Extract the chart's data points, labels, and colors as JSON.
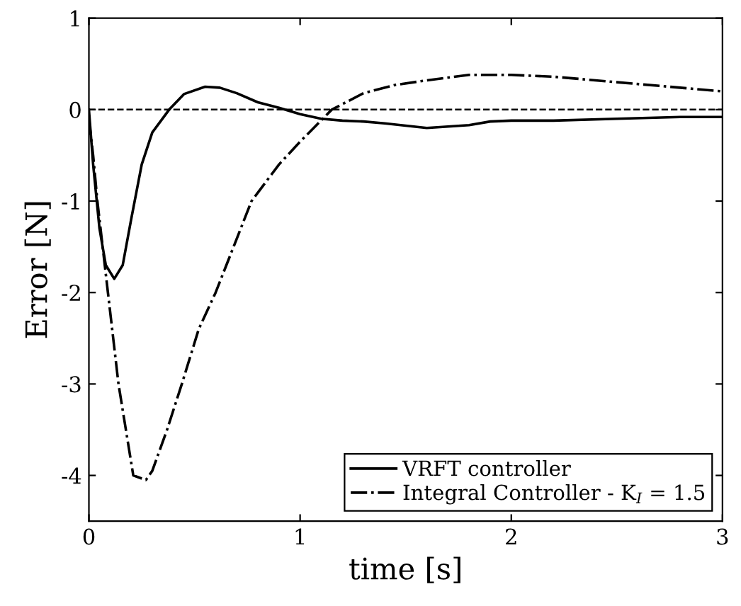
{
  "chart_data": {
    "type": "line",
    "xlabel": "time [s]",
    "ylabel": "Error [N]",
    "xlim": [
      0,
      3
    ],
    "ylim": [
      -4.5,
      1
    ],
    "xticks": [
      0,
      1,
      2,
      3
    ],
    "yticks": [
      -4,
      -3,
      -2,
      -1,
      0,
      1
    ],
    "grid": false,
    "legend": "bottom right",
    "series": [
      {
        "name": "VRFT controller",
        "color": "#000000",
        "line_style": "solid",
        "x": [
          0,
          0.02,
          0.05,
          0.08,
          0.12,
          0.16,
          0.2,
          0.25,
          0.3,
          0.38,
          0.45,
          0.55,
          0.62,
          0.7,
          0.8,
          0.9,
          1.0,
          1.1,
          1.2,
          1.3,
          1.4,
          1.6,
          1.8,
          1.9,
          2.0,
          2.2,
          2.5,
          2.8,
          3.0
        ],
        "values": [
          0,
          -0.6,
          -1.3,
          -1.7,
          -1.85,
          -1.7,
          -1.2,
          -0.6,
          -0.25,
          0,
          0.17,
          0.25,
          0.24,
          0.18,
          0.08,
          0.02,
          -0.05,
          -0.1,
          -0.12,
          -0.13,
          -0.15,
          -0.2,
          -0.17,
          -0.13,
          -0.12,
          -0.12,
          -0.1,
          -0.08,
          -0.08
        ]
      },
      {
        "name": "Integral Controller - K$_{I}$ = 1.5",
        "color": "#000000",
        "line_style": "dashdot",
        "x": [
          0,
          0.02,
          0.04,
          0.09,
          0.14,
          0.21,
          0.27,
          0.3,
          0.37,
          0.44,
          0.52,
          0.6,
          0.77,
          0.9,
          1.0,
          1.15,
          1.3,
          1.45,
          1.6,
          1.8,
          2.0,
          2.2,
          2.5,
          2.8,
          3.0
        ],
        "values": [
          -0.1,
          -0.5,
          -1,
          -2,
          -3,
          -4,
          -4.05,
          -3.95,
          -3.5,
          -3,
          -2.4,
          -2,
          -1,
          -0.6,
          -0.35,
          0,
          0.18,
          0.27,
          0.32,
          0.38,
          0.38,
          0.36,
          0.3,
          0.24,
          0.2
        ]
      }
    ],
    "ref_lines": [
      {
        "axis": "y",
        "value": 0,
        "color": "#000000",
        "line_style": "dashed"
      }
    ]
  }
}
